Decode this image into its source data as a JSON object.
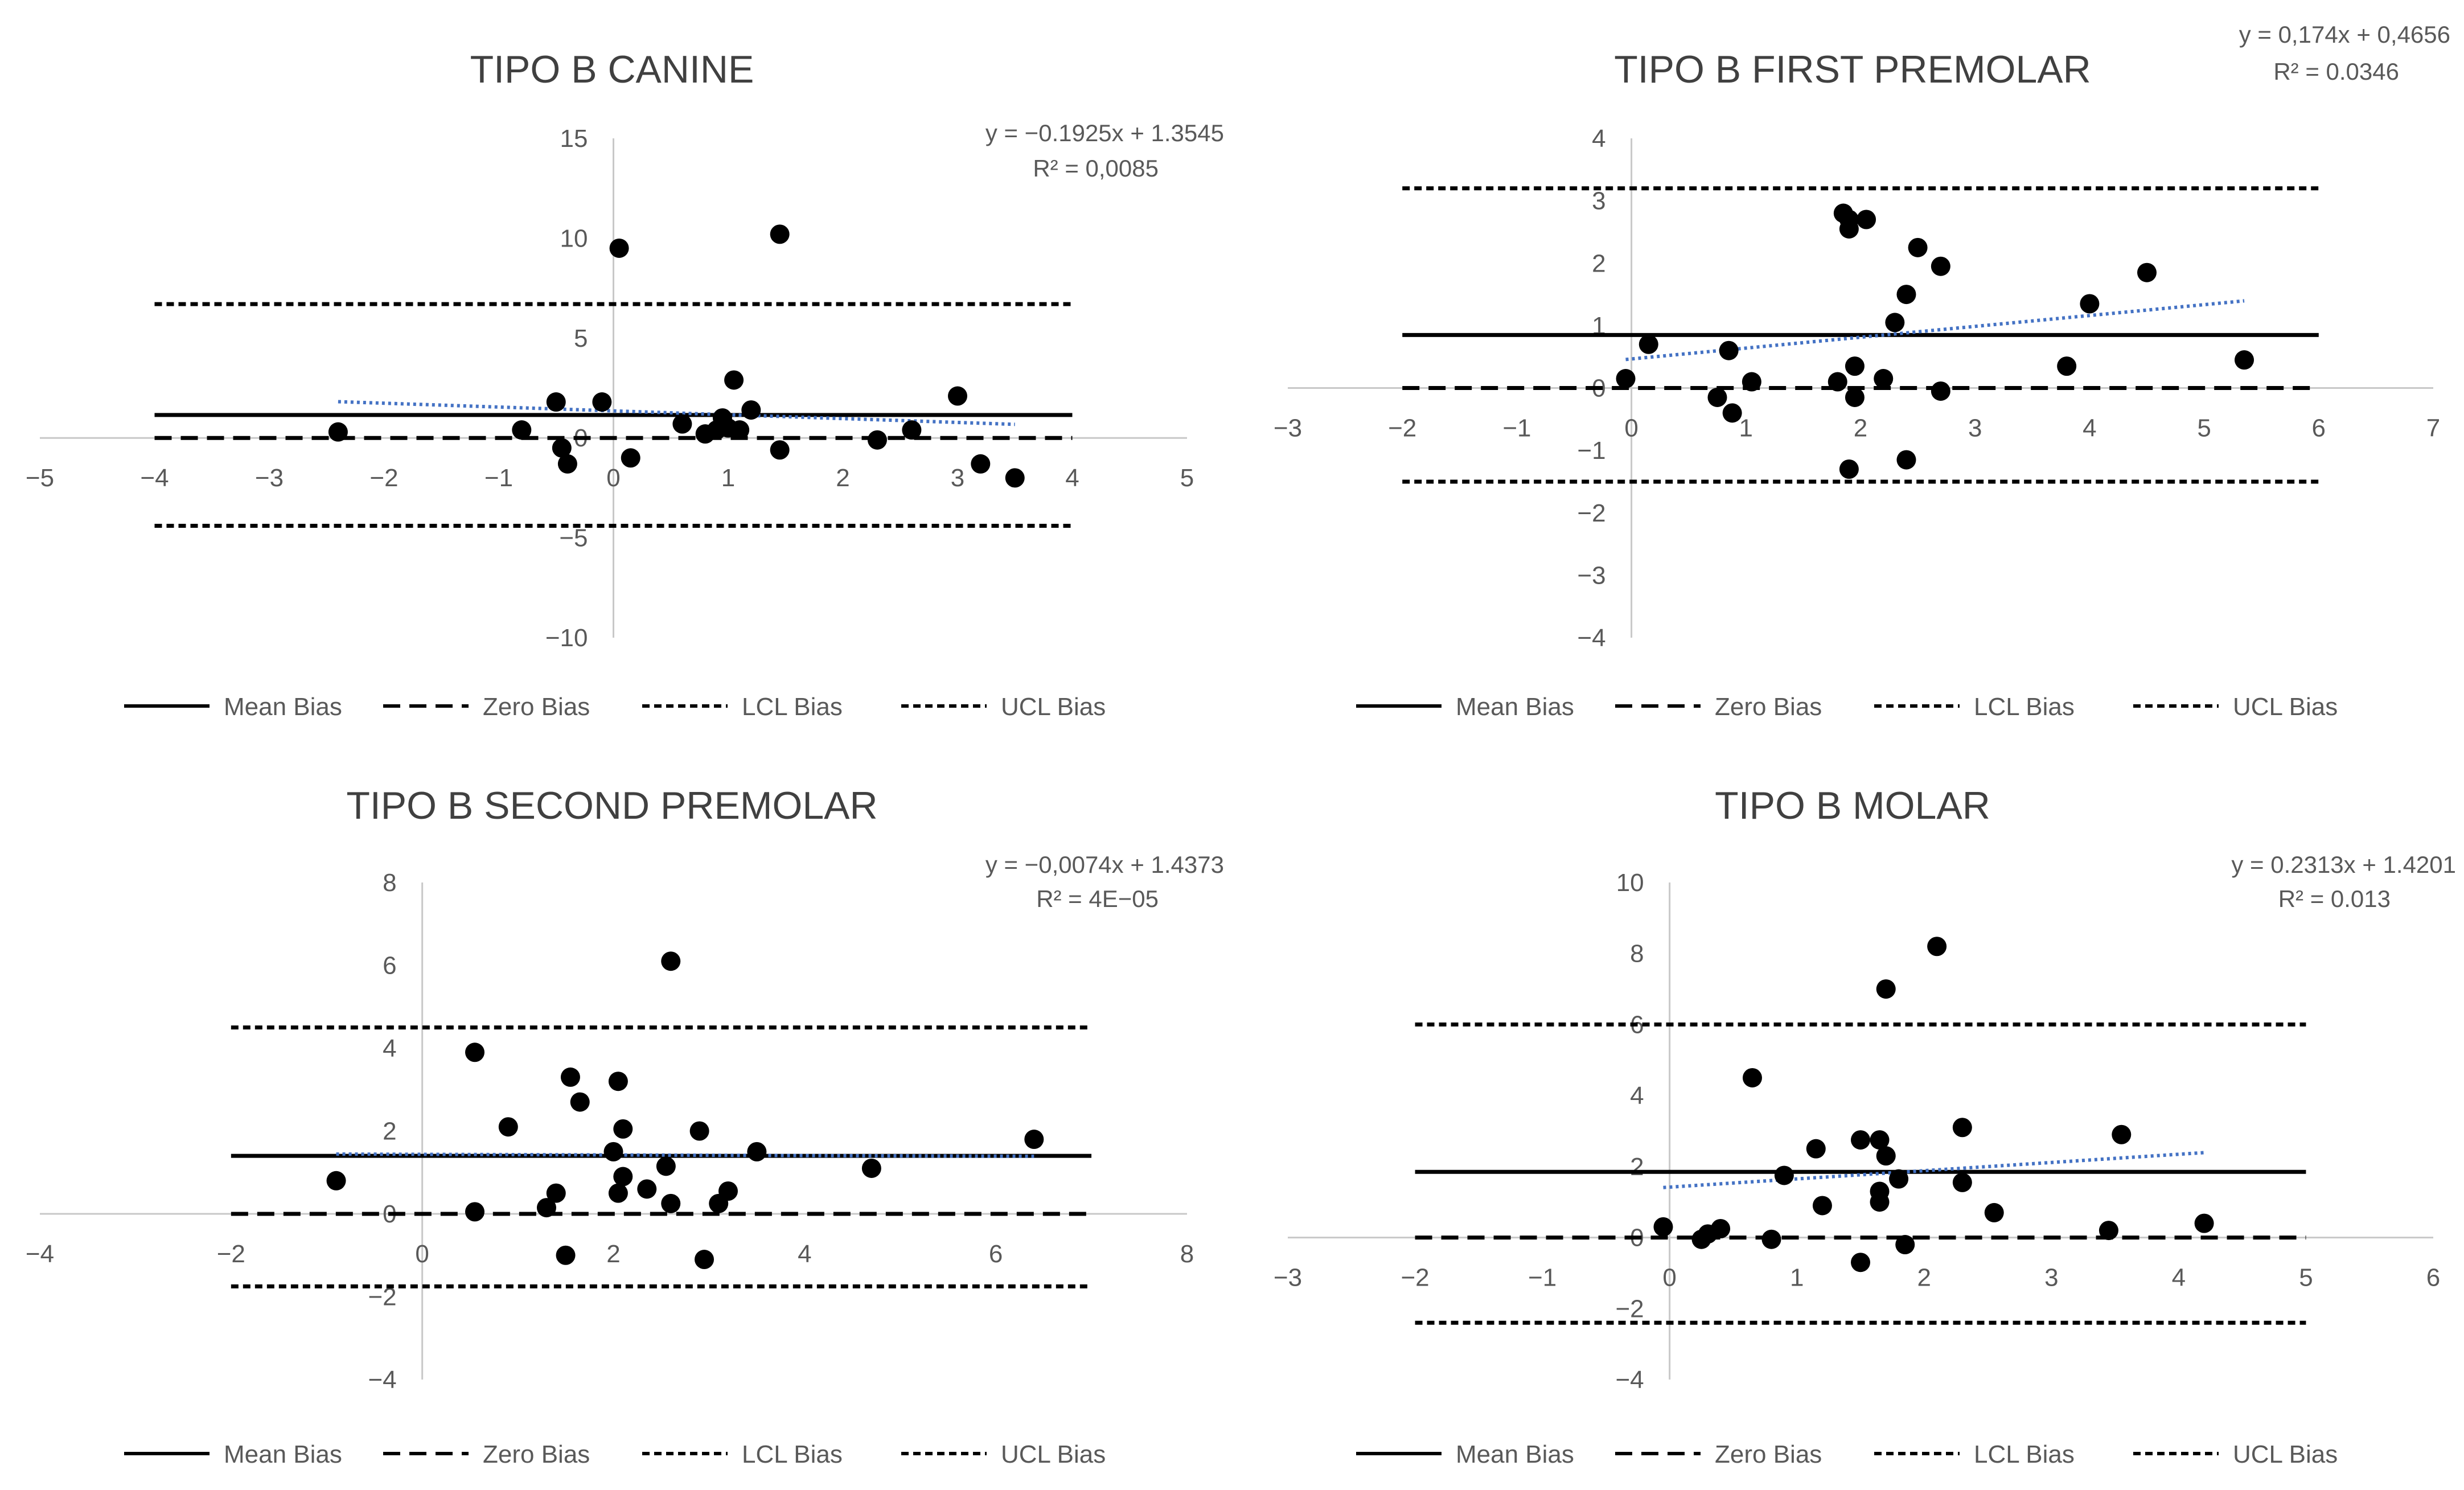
{
  "figure_title": "",
  "chart_data": [
    {
      "type": "scatter",
      "title": "TIPO B CANINE",
      "xlabel": "",
      "ylabel": "",
      "xlim": [
        -5,
        5
      ],
      "ylim": [
        -10,
        15
      ],
      "x_ticks": [
        -5,
        -4,
        -3,
        -2,
        -1,
        0,
        1,
        2,
        3,
        4,
        5
      ],
      "x_tick_labels": [
        "−5",
        "−4",
        "−3",
        "−2",
        "−1",
        "0",
        "1",
        "2",
        "3",
        "4",
        "5"
      ],
      "y_ticks": [
        -10,
        -5,
        0,
        5,
        10,
        15
      ],
      "y_tick_labels": [
        "−10",
        "−5",
        "0",
        "5",
        "10",
        "15"
      ],
      "points": [
        [
          -2.4,
          0.3
        ],
        [
          -0.8,
          0.4
        ],
        [
          -0.5,
          1.8
        ],
        [
          -0.45,
          -0.5
        ],
        [
          -0.4,
          -1.3
        ],
        [
          -0.1,
          1.8
        ],
        [
          0.05,
          9.5
        ],
        [
          0.15,
          -1.0
        ],
        [
          0.6,
          0.7
        ],
        [
          0.8,
          0.2
        ],
        [
          0.9,
          0.4
        ],
        [
          0.95,
          1.0
        ],
        [
          1.0,
          0.5
        ],
        [
          1.1,
          0.4
        ],
        [
          1.05,
          2.9
        ],
        [
          1.2,
          1.4
        ],
        [
          1.45,
          -0.6
        ],
        [
          1.45,
          10.2
        ],
        [
          2.3,
          -0.1
        ],
        [
          2.6,
          0.4
        ],
        [
          3.0,
          2.1
        ],
        [
          3.2,
          -1.3
        ],
        [
          3.5,
          -2.0
        ]
      ],
      "horizontal_lines": [
        {
          "name": "Mean Bias",
          "y": 1.15,
          "x_range": [
            -4,
            4
          ],
          "style": "solid"
        },
        {
          "name": "Zero Bias",
          "y": 0.0,
          "x_range": [
            -4,
            4
          ],
          "style": "long-dash"
        },
        {
          "name": "LCL Bias",
          "y": -4.4,
          "x_range": [
            -4,
            4
          ],
          "style": "short-dash"
        },
        {
          "name": "UCL Bias",
          "y": 6.7,
          "x_range": [
            -4,
            4
          ],
          "style": "short-dash"
        }
      ],
      "trendline": {
        "slope": -0.1925,
        "intercept": 1.3545,
        "x_range": [
          -2.4,
          3.5
        ]
      },
      "equation": "y = −0.1925x + 1.3545",
      "r_squared": "R² = 0,0085",
      "legend": [
        "Mean Bias",
        "Zero Bias",
        "LCL Bias",
        "UCL Bias"
      ],
      "legend_position": "bottom"
    },
    {
      "type": "scatter",
      "title": "TIPO B FIRST PREMOLAR",
      "xlabel": "",
      "ylabel": "",
      "xlim": [
        -3,
        7
      ],
      "ylim": [
        -4,
        4
      ],
      "x_ticks": [
        -3,
        -2,
        -1,
        0,
        1,
        2,
        3,
        4,
        5,
        6,
        7
      ],
      "x_tick_labels": [
        "−3",
        "−2",
        "−1",
        "0",
        "1",
        "2",
        "3",
        "4",
        "5",
        "6",
        "7"
      ],
      "y_ticks": [
        -4,
        -3,
        -2,
        -1,
        0,
        1,
        2,
        3,
        4
      ],
      "y_tick_labels": [
        "−4",
        "−3",
        "−2",
        "−1",
        "0",
        "1",
        "2",
        "3",
        "4"
      ],
      "points": [
        [
          -0.05,
          0.15
        ],
        [
          0.15,
          0.7
        ],
        [
          0.75,
          -0.15
        ],
        [
          0.85,
          0.6
        ],
        [
          0.88,
          -0.4
        ],
        [
          1.05,
          0.1
        ],
        [
          1.8,
          0.1
        ],
        [
          1.85,
          2.8
        ],
        [
          1.9,
          2.7
        ],
        [
          1.9,
          2.55
        ],
        [
          1.9,
          -1.3
        ],
        [
          1.95,
          0.35
        ],
        [
          1.95,
          -0.15
        ],
        [
          2.05,
          2.7
        ],
        [
          2.2,
          0.15
        ],
        [
          2.3,
          1.05
        ],
        [
          2.4,
          1.5
        ],
        [
          2.4,
          -1.15
        ],
        [
          2.5,
          2.25
        ],
        [
          2.7,
          -0.05
        ],
        [
          2.7,
          1.95
        ],
        [
          3.8,
          0.35
        ],
        [
          4.0,
          1.35
        ],
        [
          4.5,
          1.85
        ],
        [
          5.35,
          0.45
        ]
      ],
      "horizontal_lines": [
        {
          "name": "Mean Bias",
          "y": 0.85,
          "x_range": [
            -2,
            6
          ],
          "style": "solid"
        },
        {
          "name": "Zero Bias",
          "y": 0.0,
          "x_range": [
            -2,
            6
          ],
          "style": "long-dash"
        },
        {
          "name": "LCL Bias",
          "y": -1.5,
          "x_range": [
            -2,
            6
          ],
          "style": "short-dash"
        },
        {
          "name": "UCL Bias",
          "y": 3.2,
          "x_range": [
            -2,
            6
          ],
          "style": "short-dash"
        }
      ],
      "trendline": {
        "slope": 0.174,
        "intercept": 0.4656,
        "x_range": [
          -0.05,
          5.35
        ]
      },
      "equation": "y = 0,174x + 0,4656",
      "r_squared": "R² = 0.0346",
      "legend": [
        "Mean Bias",
        "Zero Bias",
        "LCL Bias",
        "UCL Bias"
      ],
      "legend_position": "bottom"
    },
    {
      "type": "scatter",
      "title": "TIPO B SECOND PREMOLAR",
      "xlabel": "",
      "ylabel": "",
      "xlim": [
        -4,
        8
      ],
      "ylim": [
        -4,
        8
      ],
      "x_ticks": [
        -4,
        -2,
        0,
        2,
        4,
        6,
        8
      ],
      "x_tick_labels": [
        "−4",
        "−2",
        "0",
        "2",
        "4",
        "6",
        "8"
      ],
      "y_ticks": [
        -4,
        -2,
        0,
        2,
        4,
        6,
        8
      ],
      "y_tick_labels": [
        "−4",
        "−2",
        "0",
        "2",
        "4",
        "6",
        "8"
      ],
      "points": [
        [
          -0.9,
          0.8
        ],
        [
          0.55,
          0.05
        ],
        [
          0.55,
          3.9
        ],
        [
          0.9,
          2.1
        ],
        [
          1.3,
          0.15
        ],
        [
          1.4,
          0.5
        ],
        [
          1.5,
          -1.0
        ],
        [
          1.55,
          3.3
        ],
        [
          1.65,
          2.7
        ],
        [
          2.0,
          1.5
        ],
        [
          2.05,
          3.2
        ],
        [
          2.05,
          0.5
        ],
        [
          2.1,
          0.9
        ],
        [
          2.1,
          2.05
        ],
        [
          2.35,
          0.6
        ],
        [
          2.55,
          1.15
        ],
        [
          2.6,
          0.25
        ],
        [
          2.6,
          6.1
        ],
        [
          2.9,
          2.0
        ],
        [
          2.95,
          -1.1
        ],
        [
          3.1,
          0.25
        ],
        [
          3.2,
          0.55
        ],
        [
          3.5,
          1.5
        ],
        [
          4.7,
          1.1
        ],
        [
          6.4,
          1.8
        ]
      ],
      "horizontal_lines": [
        {
          "name": "Mean Bias",
          "y": 1.4,
          "x_range": [
            -2,
            7
          ],
          "style": "solid"
        },
        {
          "name": "Zero Bias",
          "y": 0.0,
          "x_range": [
            -2,
            7
          ],
          "style": "long-dash"
        },
        {
          "name": "LCL Bias",
          "y": -1.75,
          "x_range": [
            -2,
            7
          ],
          "style": "short-dash"
        },
        {
          "name": "UCL Bias",
          "y": 4.5,
          "x_range": [
            -2,
            7
          ],
          "style": "short-dash"
        }
      ],
      "trendline": {
        "slope": -0.0074,
        "intercept": 1.4373,
        "x_range": [
          -0.9,
          6.4
        ]
      },
      "equation": "y = −0,0074x + 1.4373",
      "r_squared": "R² = 4E−05",
      "legend": [
        "Mean Bias",
        "Zero Bias",
        "LCL Bias",
        "UCL Bias"
      ],
      "legend_position": "bottom"
    },
    {
      "type": "scatter",
      "title": "TIPO B MOLAR",
      "xlabel": "",
      "ylabel": "",
      "xlim": [
        -3,
        6
      ],
      "ylim": [
        -4,
        10
      ],
      "x_ticks": [
        -3,
        -2,
        -1,
        0,
        1,
        2,
        3,
        4,
        5,
        6
      ],
      "x_tick_labels": [
        "−3",
        "−2",
        "−1",
        "0",
        "1",
        "2",
        "3",
        "4",
        "5",
        "6"
      ],
      "y_ticks": [
        -4,
        -2,
        0,
        2,
        4,
        6,
        8,
        10
      ],
      "y_tick_labels": [
        "−4",
        "−2",
        "0",
        "2",
        "4",
        "6",
        "8",
        "10"
      ],
      "points": [
        [
          -0.05,
          0.3
        ],
        [
          0.25,
          -0.05
        ],
        [
          0.3,
          0.1
        ],
        [
          0.4,
          0.25
        ],
        [
          0.65,
          4.5
        ],
        [
          0.8,
          -0.05
        ],
        [
          0.9,
          1.75
        ],
        [
          1.15,
          2.5
        ],
        [
          1.2,
          0.9
        ],
        [
          1.5,
          -0.7
        ],
        [
          1.5,
          2.75
        ],
        [
          1.65,
          2.75
        ],
        [
          1.65,
          1.3
        ],
        [
          1.65,
          1.0
        ],
        [
          1.7,
          2.3
        ],
        [
          1.7,
          7.0
        ],
        [
          1.8,
          1.65
        ],
        [
          1.85,
          -0.2
        ],
        [
          2.1,
          8.2
        ],
        [
          2.3,
          1.55
        ],
        [
          2.3,
          3.1
        ],
        [
          2.55,
          0.7
        ],
        [
          3.45,
          0.2
        ],
        [
          3.55,
          2.9
        ],
        [
          4.2,
          0.4
        ]
      ],
      "horizontal_lines": [
        {
          "name": "Mean Bias",
          "y": 1.85,
          "x_range": [
            -2,
            5
          ],
          "style": "solid"
        },
        {
          "name": "Zero Bias",
          "y": 0.0,
          "x_range": [
            -2,
            5
          ],
          "style": "long-dash"
        },
        {
          "name": "LCL Bias",
          "y": -2.4,
          "x_range": [
            -2,
            5
          ],
          "style": "short-dash"
        },
        {
          "name": "UCL Bias",
          "y": 6.0,
          "x_range": [
            -2,
            5
          ],
          "style": "short-dash"
        }
      ],
      "trendline": {
        "slope": 0.2313,
        "intercept": 1.4201,
        "x_range": [
          -0.05,
          4.2
        ]
      },
      "equation": "y = 0.2313x + 1.4201",
      "r_squared": "R² = 0.013",
      "legend": [
        "Mean Bias",
        "Zero Bias",
        "LCL Bias",
        "UCL Bias"
      ],
      "legend_position": "bottom"
    }
  ]
}
